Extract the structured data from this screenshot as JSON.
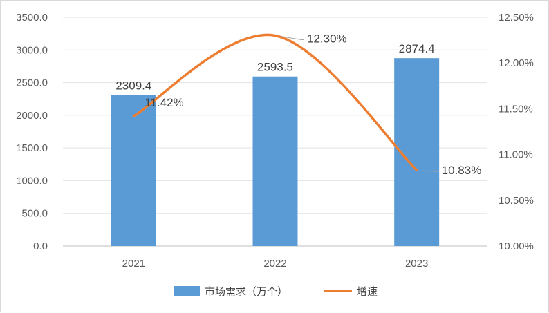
{
  "chart_data": {
    "type": "bar+line",
    "categories": [
      "2021",
      "2022",
      "2023"
    ],
    "series": [
      {
        "name": "市场需求（万个）",
        "type": "bar",
        "axis": "left",
        "values": [
          2309.4,
          2593.5,
          2874.4
        ],
        "labels": [
          "2309.4",
          "2593.5",
          "2874.4"
        ],
        "color": "#5b9bd5"
      },
      {
        "name": "增速",
        "type": "line",
        "smooth": true,
        "axis": "right",
        "values": [
          11.42,
          12.3,
          10.83
        ],
        "labels": [
          "11.42%",
          "12.30%",
          "10.83%"
        ],
        "color": "#ed7d31"
      }
    ],
    "y_left": {
      "min": 0,
      "max": 3500,
      "ticks": [
        "0.0",
        "500.0",
        "1000.0",
        "1500.0",
        "2000.0",
        "2500.0",
        "3000.0",
        "3500.0"
      ]
    },
    "y_right": {
      "min": 10.0,
      "max": 12.5,
      "ticks": [
        "10.00%",
        "10.50%",
        "11.00%",
        "11.50%",
        "12.00%",
        "12.50%"
      ]
    },
    "grid": true,
    "legend_position": "bottom"
  }
}
